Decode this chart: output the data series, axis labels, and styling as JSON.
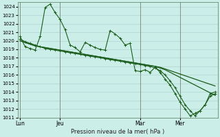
{
  "background_color": "#cceee8",
  "grid_color": "#aacccc",
  "line_color": "#1a5c1a",
  "marker_color": "#1a5c1a",
  "xlabel_text": "Pression niveau de la mer( hPa )",
  "ylim": [
    1011,
    1024.5
  ],
  "yticks": [
    1011,
    1012,
    1013,
    1014,
    1015,
    1016,
    1017,
    1018,
    1019,
    1020,
    1021,
    1022,
    1023,
    1024
  ],
  "xtick_labels": [
    "Lun",
    "Jeu",
    "Mar",
    "Mer"
  ],
  "xtick_positions": [
    0,
    8,
    24,
    32
  ],
  "total_points": 40,
  "series0": [
    1020.5,
    1019.3,
    1019.1,
    1018.9,
    1020.5,
    1023.9,
    1024.3,
    1023.3,
    1022.5,
    1021.3,
    1019.5,
    1019.2,
    1018.7,
    1019.8,
    1019.5,
    1019.2,
    1019.0,
    1018.9,
    1021.2,
    1020.8,
    1020.3,
    1019.5,
    1019.7,
    1016.5,
    1016.4,
    1016.6,
    1016.3,
    1016.9,
    1016.3,
    1015.5,
    1014.8,
    1013.8,
    1012.8,
    1012.0,
    1011.2,
    1011.5,
    1011.8,
    1012.5,
    1013.5,
    1013.8
  ],
  "series1": [
    1020.0,
    1019.8,
    1019.6,
    1019.4,
    1019.3,
    1019.2,
    1019.1,
    1019.0,
    1018.9,
    1018.8,
    1018.7,
    1018.6,
    1018.5,
    1018.4,
    1018.3,
    1018.2,
    1018.1,
    1018.0,
    1017.9,
    1017.8,
    1017.7,
    1017.6,
    1017.5,
    1017.4,
    1017.3,
    1017.2,
    1017.1,
    1017.0,
    1016.9,
    1016.7,
    1016.5,
    1016.3,
    1016.1,
    1015.9,
    1015.7,
    1015.5,
    1015.3,
    1015.1,
    1014.9,
    1014.7
  ],
  "series2": [
    1020.2,
    1019.9,
    1019.7,
    1019.5,
    1019.3,
    1019.1,
    1019.0,
    1018.9,
    1018.8,
    1018.7,
    1018.6,
    1018.5,
    1018.4,
    1018.3,
    1018.2,
    1018.1,
    1018.0,
    1017.9,
    1017.8,
    1017.7,
    1017.6,
    1017.5,
    1017.4,
    1017.3,
    1017.2,
    1017.1,
    1017.0,
    1016.8,
    1016.5,
    1016.0,
    1015.3,
    1014.5,
    1013.5,
    1012.5,
    1011.8,
    1011.2,
    1011.8,
    1012.5,
    1013.8,
    1014.0
  ],
  "series3": [
    1020.0,
    1019.8,
    1019.6,
    1019.4,
    1019.3,
    1019.2,
    1019.1,
    1019.0,
    1018.9,
    1018.8,
    1018.7,
    1018.6,
    1018.5,
    1018.4,
    1018.3,
    1018.2,
    1018.1,
    1018.0,
    1017.9,
    1017.8,
    1017.7,
    1017.6,
    1017.5,
    1017.4,
    1017.3,
    1017.2,
    1017.1,
    1017.0,
    1016.8,
    1016.6,
    1016.3,
    1016.0,
    1015.7,
    1015.4,
    1015.1,
    1014.8,
    1014.5,
    1014.2,
    1013.9,
    1013.6
  ]
}
